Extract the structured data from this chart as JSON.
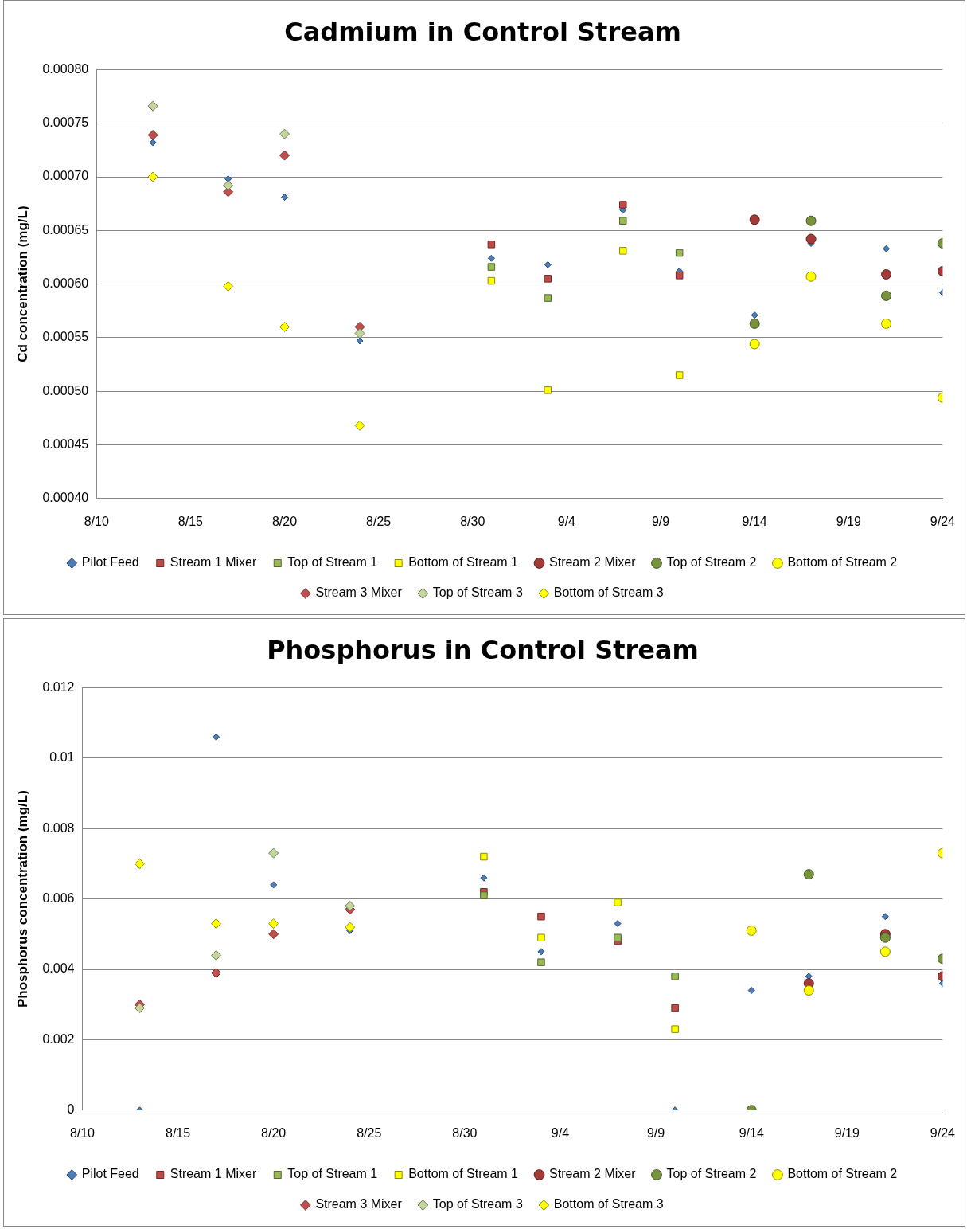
{
  "chart_data": [
    {
      "type": "scatter",
      "title": "Cadmium in Control Stream",
      "ylabel": "Cd concentration (mg/L)",
      "xlim": [
        "--08-10",
        "--09-24"
      ],
      "xticks": [
        {
          "value": "--08-10",
          "label": "8/10"
        },
        {
          "value": "--08-15",
          "label": "8/15"
        },
        {
          "value": "--08-20",
          "label": "8/20"
        },
        {
          "value": "--08-25",
          "label": "8/25"
        },
        {
          "value": "--08-30",
          "label": "8/30"
        },
        {
          "value": "--09-04",
          "label": "9/4"
        },
        {
          "value": "--09-09",
          "label": "9/9"
        },
        {
          "value": "--09-14",
          "label": "9/14"
        },
        {
          "value": "--09-19",
          "label": "9/19"
        },
        {
          "value": "--09-24",
          "label": "9/24"
        }
      ],
      "ylim": [
        0.0004,
        0.0008
      ],
      "yticks": [
        {
          "value": 0.0004,
          "label": "0.00040"
        },
        {
          "value": 0.00045,
          "label": "0.00045"
        },
        {
          "value": 0.0005,
          "label": "0.00050"
        },
        {
          "value": 0.00055,
          "label": "0.00055"
        },
        {
          "value": 0.0006,
          "label": "0.00060"
        },
        {
          "value": 0.00065,
          "label": "0.00065"
        },
        {
          "value": 0.0007,
          "label": "0.00070"
        },
        {
          "value": 0.00075,
          "label": "0.00075"
        },
        {
          "value": 0.0008,
          "label": "0.00080"
        }
      ],
      "grid": "y",
      "legend": "bottom",
      "series": [
        {
          "name": "Pilot Feed",
          "color": "#4a7ebb",
          "marker": "diamond",
          "x": [
            "--08-13",
            "--08-17",
            "--08-20",
            "--08-24",
            "--08-31",
            "--09-03",
            "--09-07",
            "--09-10",
            "--09-14",
            "--09-17",
            "--09-21",
            "--09-24"
          ],
          "values": [
            0.000732,
            0.000698,
            0.000681,
            0.000547,
            0.000624,
            0.000618,
            0.000669,
            0.000612,
            0.000571,
            0.000638,
            0.000633,
            0.000592
          ]
        },
        {
          "name": "Stream 1 Mixer",
          "color": "#be4b48",
          "marker": "square",
          "x": [
            "--08-31",
            "--09-03",
            "--09-07",
            "--09-10"
          ],
          "values": [
            0.000637,
            0.000605,
            0.000674,
            0.000608
          ]
        },
        {
          "name": "Top of Stream 1",
          "color": "#98b954",
          "marker": "square",
          "x": [
            "--08-31",
            "--09-03",
            "--09-07",
            "--09-10"
          ],
          "values": [
            0.000616,
            0.000587,
            0.000659,
            0.000629
          ]
        },
        {
          "name": "Bottom of Stream 1",
          "color": "#ffff00",
          "marker": "square",
          "x": [
            "--08-31",
            "--09-03",
            "--09-07",
            "--09-10"
          ],
          "values": [
            0.000603,
            0.000501,
            0.000631,
            0.000515
          ]
        },
        {
          "name": "Stream 2 Mixer",
          "color": "#a33a38",
          "marker": "circle",
          "x": [
            "--09-14",
            "--09-17",
            "--09-21",
            "--09-24"
          ],
          "values": [
            0.00066,
            0.000642,
            0.000609,
            0.000612
          ]
        },
        {
          "name": "Top of Stream 2",
          "color": "#77933c",
          "marker": "circle",
          "x": [
            "--09-14",
            "--09-17",
            "--09-21",
            "--09-24"
          ],
          "values": [
            0.000563,
            0.000659,
            0.000589,
            0.000638
          ]
        },
        {
          "name": "Bottom of Stream 2",
          "color": "#ffff00",
          "marker": "circle",
          "x": [
            "--09-14",
            "--09-17",
            "--09-21",
            "--09-24"
          ],
          "values": [
            0.000544,
            0.000607,
            0.000563,
            0.000494
          ]
        },
        {
          "name": "Stream 3 Mixer",
          "color": "#c0504d",
          "marker": "diamond",
          "x": [
            "--08-13",
            "--08-17",
            "--08-20",
            "--08-24"
          ],
          "values": [
            0.000739,
            0.000686,
            0.00072,
            0.00056
          ]
        },
        {
          "name": "Top of Stream 3",
          "color": "#c3d69b",
          "marker": "diamond",
          "x": [
            "--08-13",
            "--08-17",
            "--08-20",
            "--08-24"
          ],
          "values": [
            0.000766,
            0.000692,
            0.00074,
            0.000554
          ]
        },
        {
          "name": "Bottom of Stream 3",
          "color": "#ffff00",
          "marker": "diamond",
          "x": [
            "--08-13",
            "--08-17",
            "--08-20",
            "--08-24"
          ],
          "values": [
            0.0007,
            0.000598,
            0.00056,
            0.000468
          ]
        }
      ]
    },
    {
      "type": "scatter",
      "title": "Phosphorus in Control Stream",
      "ylabel": "Phosphorus concentration (mg/L)",
      "xlim": [
        "--08-10",
        "--09-24"
      ],
      "xticks": [
        {
          "value": "--08-10",
          "label": "8/10"
        },
        {
          "value": "--08-15",
          "label": "8/15"
        },
        {
          "value": "--08-20",
          "label": "8/20"
        },
        {
          "value": "--08-25",
          "label": "8/25"
        },
        {
          "value": "--08-30",
          "label": "8/30"
        },
        {
          "value": "--09-04",
          "label": "9/4"
        },
        {
          "value": "--09-09",
          "label": "9/9"
        },
        {
          "value": "--09-14",
          "label": "9/14"
        },
        {
          "value": "--09-19",
          "label": "9/19"
        },
        {
          "value": "--09-24",
          "label": "9/24"
        }
      ],
      "ylim": [
        0,
        0.012
      ],
      "yticks": [
        0,
        0.002,
        0.004,
        0.006,
        0.008,
        0.01,
        0.012
      ],
      "grid": "y",
      "legend": "bottom",
      "series": [
        {
          "name": "Pilot Feed",
          "color": "#4a7ebb",
          "marker": "diamond",
          "x": [
            "--08-13",
            "--08-17",
            "--08-20",
            "--08-24",
            "--08-31",
            "--09-03",
            "--09-07",
            "--09-10",
            "--09-14",
            "--09-17",
            "--09-21",
            "--09-24"
          ],
          "values": [
            0,
            0.0106,
            0.0064,
            0.0051,
            0.0066,
            0.0045,
            0.0053,
            0,
            0.0034,
            0.0038,
            0.0055,
            0.0036
          ]
        },
        {
          "name": "Stream 1 Mixer",
          "color": "#be4b48",
          "marker": "square",
          "x": [
            "--08-31",
            "--09-03",
            "--09-07",
            "--09-10"
          ],
          "values": [
            0.0062,
            0.0055,
            0.0048,
            0.0029
          ]
        },
        {
          "name": "Top of Stream 1",
          "color": "#98b954",
          "marker": "square",
          "x": [
            "--08-31",
            "--09-03",
            "--09-07",
            "--09-10"
          ],
          "values": [
            0.0061,
            0.0042,
            0.0049,
            0.0038
          ]
        },
        {
          "name": "Bottom of Stream 1",
          "color": "#ffff00",
          "marker": "square",
          "x": [
            "--08-31",
            "--09-03",
            "--09-07",
            "--09-10"
          ],
          "values": [
            0.0072,
            0.0049,
            0.0059,
            0.0023
          ]
        },
        {
          "name": "Stream 2 Mixer",
          "color": "#a33a38",
          "marker": "circle",
          "x": [
            "--09-17",
            "--09-21",
            "--09-24"
          ],
          "values": [
            0.0036,
            0.005,
            0.0038
          ]
        },
        {
          "name": "Top of Stream 2",
          "color": "#77933c",
          "marker": "circle",
          "x": [
            "--09-14",
            "--09-17",
            "--09-21",
            "--09-24"
          ],
          "values": [
            0,
            0.0067,
            0.0049,
            0.0043
          ]
        },
        {
          "name": "Bottom of Stream 2",
          "color": "#ffff00",
          "marker": "circle",
          "x": [
            "--09-14",
            "--09-17",
            "--09-21",
            "--09-24"
          ],
          "values": [
            0.0051,
            0.0034,
            0.0045,
            0.0073
          ]
        },
        {
          "name": "Stream 3 Mixer",
          "color": "#c0504d",
          "marker": "diamond",
          "x": [
            "--08-13",
            "--08-17",
            "--08-20",
            "--08-24"
          ],
          "values": [
            0.003,
            0.0039,
            0.005,
            0.0057
          ]
        },
        {
          "name": "Top of Stream 3",
          "color": "#c3d69b",
          "marker": "diamond",
          "x": [
            "--08-13",
            "--08-17",
            "--08-20",
            "--08-24"
          ],
          "values": [
            0.0029,
            0.0044,
            0.0073,
            0.0058
          ]
        },
        {
          "name": "Bottom of Stream 3",
          "color": "#ffff00",
          "marker": "diamond",
          "x": [
            "--08-13",
            "--08-17",
            "--08-20",
            "--08-24"
          ],
          "values": [
            0.007,
            0.0053,
            0.0053,
            0.0052
          ]
        }
      ]
    }
  ]
}
